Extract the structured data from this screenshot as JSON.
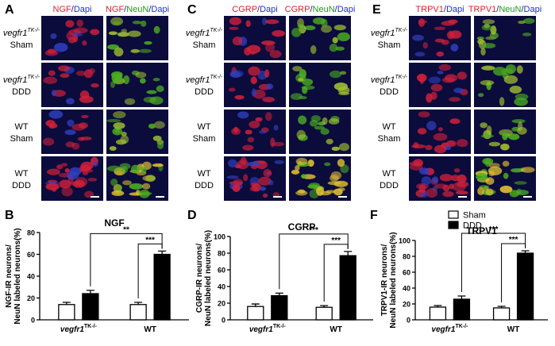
{
  "panels": [
    {
      "letter": "A",
      "headers": [
        [
          {
            "text": "NGF",
            "color": "#e01e2a"
          },
          {
            "text": "/",
            "color": "#1b1b7a"
          },
          {
            "text": "Dapi",
            "color": "#1f2fd0"
          }
        ],
        [
          {
            "text": "NGF",
            "color": "#e01e2a"
          },
          {
            "text": "/",
            "color": "#1b1b7a"
          },
          {
            "text": "NeuN",
            "color": "#1c9a1c"
          },
          {
            "text": "/",
            "color": "#1b1b7a"
          },
          {
            "text": "Dapi",
            "color": "#1f2fd0"
          }
        ]
      ],
      "row_labels": [
        {
          "genotype": "vegfr1",
          "superscript": "TK-/-",
          "condition": "Sham"
        },
        {
          "genotype": "vegfr1",
          "superscript": "TK-/-",
          "condition": "DDD"
        },
        {
          "genotype": "WT",
          "condition": "Sham"
        },
        {
          "genotype": "WT",
          "condition": "DDD"
        }
      ]
    },
    {
      "letter": "C",
      "headers": [
        [
          {
            "text": "CGRP",
            "color": "#e01e2a"
          },
          {
            "text": "/",
            "color": "#1b1b7a"
          },
          {
            "text": "Dapi",
            "color": "#1f2fd0"
          }
        ],
        [
          {
            "text": "CGRP",
            "color": "#e01e2a"
          },
          {
            "text": "/",
            "color": "#1b1b7a"
          },
          {
            "text": "NeuN",
            "color": "#1c9a1c"
          },
          {
            "text": "/",
            "color": "#1b1b7a"
          },
          {
            "text": "Dapi",
            "color": "#1f2fd0"
          }
        ]
      ],
      "row_labels": [
        {
          "genotype": "vegfr1",
          "superscript": "TK-/-",
          "condition": "Sham"
        },
        {
          "genotype": "vegfr1",
          "superscript": "TK-/-",
          "condition": "DDD"
        },
        {
          "genotype": "WT",
          "condition": "Sham"
        },
        {
          "genotype": "WT",
          "condition": "DDD"
        }
      ]
    },
    {
      "letter": "E",
      "headers": [
        [
          {
            "text": "TRPV1",
            "color": "#e01e2a"
          },
          {
            "text": "/",
            "color": "#1b1b7a"
          },
          {
            "text": "Dapi",
            "color": "#1f2fd0"
          }
        ],
        [
          {
            "text": "TRPV1",
            "color": "#e01e2a"
          },
          {
            "text": "/",
            "color": "#1b1b7a"
          },
          {
            "text": "NeuN",
            "color": "#1c9a1c"
          },
          {
            "text": "/",
            "color": "#1b1b7a"
          },
          {
            "text": "Dapi",
            "color": "#1f2fd0"
          }
        ]
      ],
      "row_labels": [
        {
          "genotype": "vegfr1",
          "superscript": "TK-/-",
          "condition": "Sham"
        },
        {
          "genotype": "vegfr1",
          "superscript": "TK-/-",
          "condition": "DDD"
        },
        {
          "genotype": "WT",
          "condition": "Sham"
        },
        {
          "genotype": "WT",
          "condition": "DDD"
        }
      ]
    }
  ],
  "chart_data": [
    {
      "type": "bar",
      "letter": "B",
      "title": "NGF",
      "ylabel": [
        "NGF-IR neurons/",
        "NeuN labeled neurons(%)"
      ],
      "categories": [
        {
          "label": "vegfr1",
          "superscript": "TK-/-"
        },
        {
          "label": "WT"
        }
      ],
      "series": [
        {
          "color": "#ffffff",
          "values": [
            14,
            14
          ],
          "errors": [
            2,
            2
          ]
        },
        {
          "color": "#000000",
          "values": [
            24,
            60
          ],
          "errors": [
            3,
            3
          ]
        }
      ],
      "ylim": [
        0,
        80
      ],
      "yticks": [
        0,
        20,
        40,
        60,
        80
      ],
      "annotations": [
        "**",
        "***"
      ],
      "legend": false
    },
    {
      "type": "bar",
      "letter": "D",
      "title": "CGRP",
      "ylabel": [
        "CGRP-IR neurons/",
        "NeuN labeled neurons(%)"
      ],
      "categories": [
        {
          "label": "vegfr1",
          "superscript": "TK-/-"
        },
        {
          "label": "WT"
        }
      ],
      "series": [
        {
          "color": "#ffffff",
          "values": [
            16,
            15
          ],
          "errors": [
            3,
            2
          ]
        },
        {
          "color": "#000000",
          "values": [
            29,
            77
          ],
          "errors": [
            3,
            5
          ]
        }
      ],
      "ylim": [
        0,
        100
      ],
      "yticks": [
        0,
        20,
        40,
        60,
        80,
        100
      ],
      "annotations": [
        "***",
        "***"
      ],
      "legend": false
    },
    {
      "type": "bar",
      "letter": "F",
      "title": "TRPV1",
      "ylabel": [
        "TRPV1-IR neurons/",
        "NeuN labeled neurons(%)"
      ],
      "categories": [
        {
          "label": "vegfr1",
          "superscript": "TK-/-"
        },
        {
          "label": "WT"
        }
      ],
      "series": [
        {
          "name": "Sham",
          "color": "#ffffff",
          "values": [
            16,
            15
          ],
          "errors": [
            2,
            2
          ]
        },
        {
          "name": "DDD",
          "color": "#000000",
          "values": [
            26,
            84
          ],
          "errors": [
            4,
            3
          ]
        }
      ],
      "ylim": [
        0,
        100
      ],
      "yticks": [
        0,
        20,
        40,
        60,
        80,
        100
      ],
      "annotations": [
        "***",
        "***"
      ],
      "legend": true
    }
  ]
}
